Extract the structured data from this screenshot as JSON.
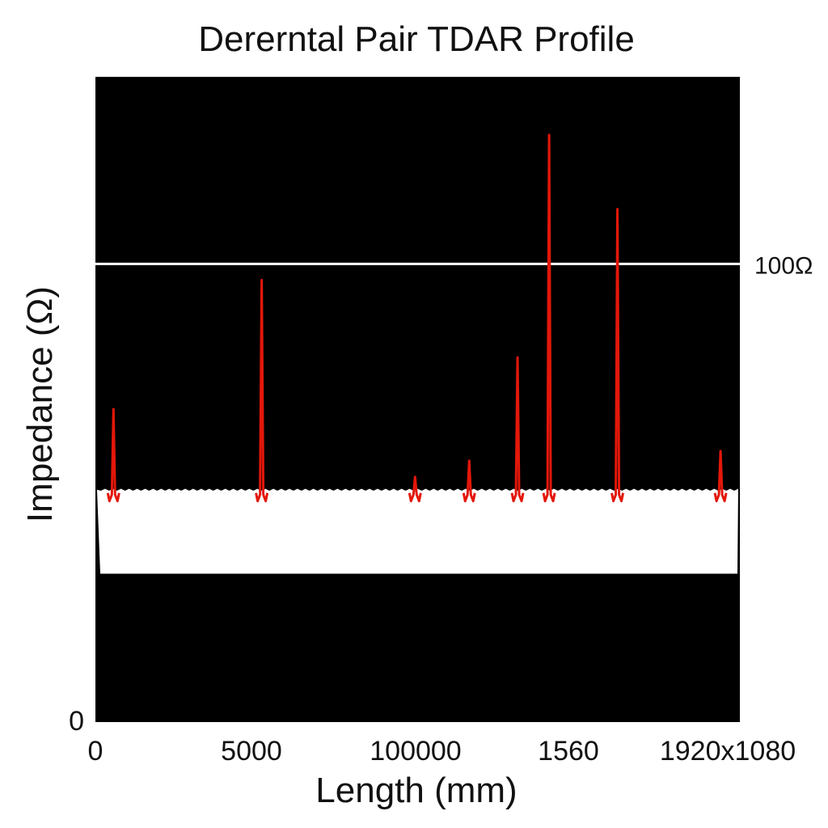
{
  "chart_data": {
    "type": "line",
    "title": "Dererntal Pair TDAR Profile",
    "xlabel": "Length (mm)",
    "ylabel": "Impedance (Ω)",
    "x_tick_labels": [
      "0",
      "5000",
      "100000",
      "1560",
      "1920x1080"
    ],
    "y_tick_labels": [
      "0"
    ],
    "xlim": [
      0,
      100
    ],
    "ylim": [
      0,
      100
    ],
    "grid": false,
    "background_color": "#000000",
    "reference_line": {
      "label": "100Ω",
      "y": 71,
      "color": "#ffffff"
    },
    "baseline_band": {
      "top": 36,
      "bottom": 23,
      "color": "#ffffff"
    },
    "series": [
      {
        "color": "#e3170a",
        "spikes": [
          {
            "x": 2.8,
            "peak": 48.5
          },
          {
            "x": 25.8,
            "peak": 68.5
          },
          {
            "x": 49.6,
            "peak": 38.0
          },
          {
            "x": 58.0,
            "peak": 40.5
          },
          {
            "x": 65.5,
            "peak": 56.5
          },
          {
            "x": 70.4,
            "peak": 91.0
          },
          {
            "x": 81.0,
            "peak": 79.5
          },
          {
            "x": 97.0,
            "peak": 42.0
          }
        ]
      }
    ]
  }
}
